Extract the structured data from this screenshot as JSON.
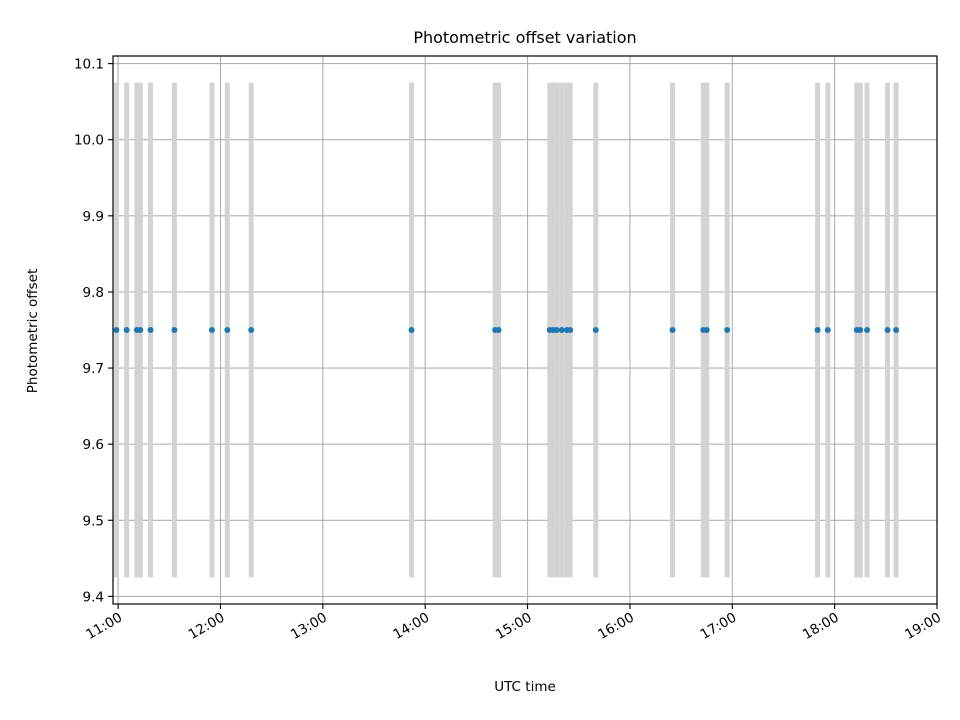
{
  "chart_data": {
    "type": "scatter",
    "title": "Photometric offset variation",
    "xlabel": "UTC time",
    "ylabel": "Photometric offset",
    "x_axis": "time",
    "xlim": [
      "10:57",
      "19:00"
    ],
    "ylim": [
      9.39,
      10.11
    ],
    "grid": true,
    "legend": "none",
    "x_ticks": [
      "11:00",
      "12:00",
      "13:00",
      "14:00",
      "15:00",
      "16:00",
      "17:00",
      "18:00",
      "19:00"
    ],
    "y_ticks": [
      9.4,
      9.5,
      9.6,
      9.7,
      9.8,
      9.9,
      10.0,
      10.1
    ],
    "y_tick_labels": [
      "9.4",
      "9.5",
      "9.6",
      "9.7",
      "9.8",
      "9.9",
      "10.0",
      "10.1"
    ],
    "vertical_bands": {
      "ymin": 9.425,
      "ymax": 10.075,
      "color": "#d3d3d3",
      "x": [
        "10:59",
        "11:05",
        "11:11",
        "11:13",
        "11:19",
        "11:33",
        "11:55",
        "12:04",
        "12:18",
        "13:52",
        "14:41",
        "14:43",
        "15:13",
        "15:15",
        "15:17",
        "15:20",
        "15:23",
        "15:25",
        "15:40",
        "16:25",
        "16:43",
        "16:45",
        "16:57",
        "17:50",
        "17:56",
        "18:13",
        "18:15",
        "18:19",
        "18:31",
        "18:36"
      ]
    },
    "series": [
      {
        "color": "#1f77b4",
        "x": [
          "10:59",
          "11:05",
          "11:11",
          "11:13",
          "11:19",
          "11:33",
          "11:55",
          "12:04",
          "12:18",
          "13:52",
          "14:41",
          "14:43",
          "15:13",
          "15:15",
          "15:17",
          "15:20",
          "15:23",
          "15:25",
          "15:40",
          "16:25",
          "16:43",
          "16:45",
          "16:57",
          "17:50",
          "17:56",
          "18:13",
          "18:15",
          "18:19",
          "18:31",
          "18:36"
        ],
        "y": [
          9.75,
          9.75,
          9.75,
          9.75,
          9.75,
          9.75,
          9.75,
          9.75,
          9.75,
          9.75,
          9.75,
          9.75,
          9.75,
          9.75,
          9.75,
          9.75,
          9.75,
          9.75,
          9.75,
          9.75,
          9.75,
          9.75,
          9.75,
          9.75,
          9.75,
          9.75,
          9.75,
          9.75,
          9.75,
          9.75
        ]
      }
    ]
  }
}
